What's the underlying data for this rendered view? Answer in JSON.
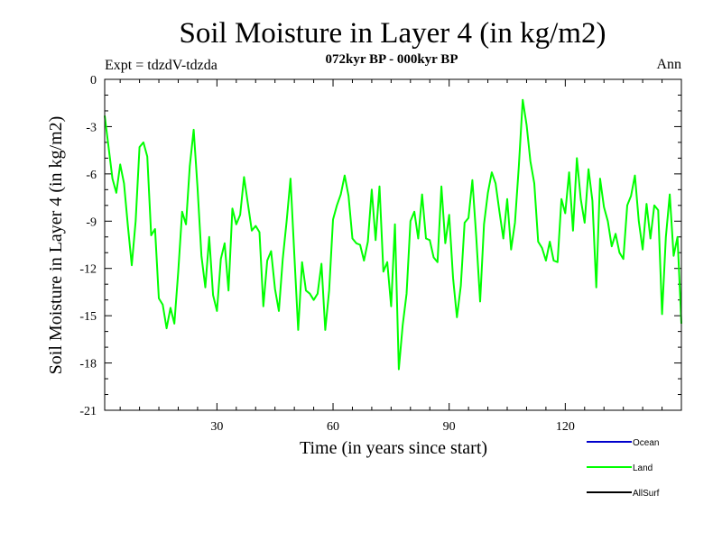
{
  "chart_data": {
    "type": "line",
    "title": "Soil Moisture in Layer 4 (in kg/m2)",
    "subtitle": "072kyr BP - 000kyr BP",
    "left_label": "Expt = tdzdV-tdzda",
    "right_label": "Ann",
    "xlabel": "Time (in years since start)",
    "ylabel": "Soil Moisture in Layer 4 (in kg/m2)",
    "xlim": [
      1,
      150
    ],
    "ylim": [
      -21,
      0
    ],
    "xticks": [
      30,
      60,
      90,
      120
    ],
    "yticks": [
      0,
      -3,
      -6,
      -9,
      -12,
      -15,
      -18,
      -21
    ],
    "legend": [
      {
        "name": "Ocean",
        "color": "#0000cc"
      },
      {
        "name": "Land",
        "color": "#00ff00"
      },
      {
        "name": "AllSurf",
        "color": "#000000"
      }
    ],
    "series": [
      {
        "name": "Land",
        "color": "#00ff00",
        "x": [
          1,
          2,
          3,
          4,
          5,
          6,
          7,
          8,
          9,
          10,
          11,
          12,
          13,
          14,
          15,
          16,
          17,
          18,
          19,
          20,
          21,
          22,
          23,
          24,
          25,
          26,
          27,
          28,
          29,
          30,
          31,
          32,
          33,
          34,
          35,
          36,
          37,
          38,
          39,
          40,
          41,
          42,
          43,
          44,
          45,
          46,
          47,
          48,
          49,
          50,
          51,
          52,
          53,
          54,
          55,
          56,
          57,
          58,
          59,
          60,
          61,
          62,
          63,
          64,
          65,
          66,
          67,
          68,
          69,
          70,
          71,
          72,
          73,
          74,
          75,
          76,
          77,
          78,
          79,
          80,
          81,
          82,
          83,
          84,
          85,
          86,
          87,
          88,
          89,
          90,
          91,
          92,
          93,
          94,
          95,
          96,
          97,
          98,
          99,
          100,
          101,
          102,
          103,
          104,
          105,
          106,
          107,
          108,
          109,
          110,
          111,
          112,
          113,
          114,
          115,
          116,
          117,
          118,
          119,
          120,
          121,
          122,
          123,
          124,
          125,
          126,
          127,
          128,
          129,
          130,
          131,
          132,
          133,
          134,
          135,
          136,
          137,
          138,
          139,
          140,
          141,
          142,
          143,
          144,
          145,
          146,
          147,
          148,
          149,
          150
        ],
        "values": [
          -2.3,
          -4.3,
          -6.3,
          -7.2,
          -5.4,
          -6.6,
          -9.3,
          -11.8,
          -9.0,
          -4.3,
          -4.0,
          -4.9,
          -9.9,
          -9.5,
          -13.9,
          -14.3,
          -15.8,
          -14.5,
          -15.5,
          -12.2,
          -8.4,
          -9.2,
          -5.5,
          -3.2,
          -6.9,
          -11.2,
          -13.2,
          -10.0,
          -13.7,
          -14.7,
          -11.4,
          -10.4,
          -13.4,
          -8.2,
          -9.2,
          -8.6,
          -6.2,
          -7.9,
          -9.6,
          -9.3,
          -9.7,
          -14.4,
          -11.5,
          -10.9,
          -13.3,
          -14.7,
          -11.4,
          -9.0,
          -6.3,
          -11.1,
          -15.9,
          -11.6,
          -13.4,
          -13.6,
          -14.0,
          -13.6,
          -11.7,
          -15.9,
          -13.4,
          -8.9,
          -8.0,
          -7.3,
          -6.1,
          -7.4,
          -10.1,
          -10.4,
          -10.5,
          -11.5,
          -10.3,
          -7.0,
          -10.2,
          -6.8,
          -12.2,
          -11.6,
          -14.4,
          -9.2,
          -18.4,
          -15.6,
          -13.6,
          -9.0,
          -8.4,
          -10.1,
          -7.3,
          -10.1,
          -10.2,
          -11.3,
          -11.6,
          -6.8,
          -10.4,
          -8.6,
          -12.6,
          -15.1,
          -13.1,
          -9.1,
          -8.8,
          -6.4,
          -10.0,
          -14.1,
          -9.2,
          -7.2,
          -5.9,
          -6.6,
          -8.4,
          -10.1,
          -7.6,
          -10.8,
          -9.1,
          -5.5,
          -1.3,
          -2.9,
          -5.2,
          -6.6,
          -10.3,
          -10.7,
          -11.5,
          -10.3,
          -11.5,
          -11.6,
          -7.6,
          -8.5,
          -5.9,
          -9.6,
          -5.0,
          -7.6,
          -9.1,
          -5.7,
          -7.7,
          -13.2,
          -6.3,
          -8.1,
          -9.0,
          -10.6,
          -9.8,
          -11.0,
          -11.4,
          -8.0,
          -7.4,
          -6.1,
          -9.0,
          -10.8,
          -7.9,
          -10.1,
          -8.0,
          -8.3,
          -14.9,
          -10.0,
          -7.3,
          -11.2,
          -10.0,
          -15.5
        ]
      }
    ]
  }
}
